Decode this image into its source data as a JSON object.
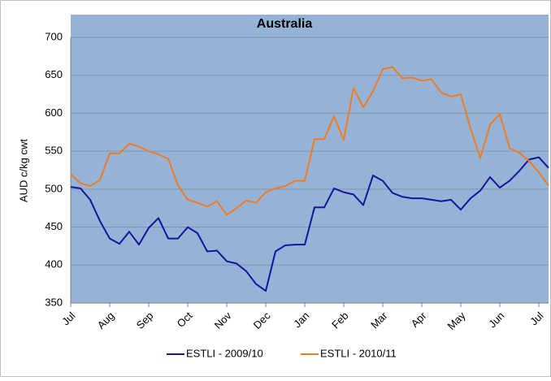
{
  "chart_data": {
    "type": "line",
    "title": "Australia",
    "y_label": "AUD c/kg cwt",
    "categories": [
      "Jul",
      null,
      null,
      null,
      "Aug",
      null,
      null,
      null,
      "Sep",
      null,
      null,
      null,
      "Oct",
      null,
      null,
      null,
      "Nov",
      null,
      null,
      null,
      "Dec",
      null,
      null,
      null,
      "Jan",
      null,
      null,
      null,
      "Feb",
      null,
      null,
      null,
      "Mar",
      null,
      null,
      null,
      "Apr",
      null,
      null,
      null,
      "May",
      null,
      null,
      null,
      "Jun",
      null,
      null,
      null,
      "Jul",
      null
    ],
    "series": [
      {
        "name": "ESTLI - 2009/10",
        "color": "#14149c",
        "values": [
          503,
          501,
          486,
          458,
          435,
          428,
          444,
          427,
          449,
          462,
          435,
          435,
          450,
          442,
          418,
          419,
          405,
          402,
          392,
          375,
          366,
          418,
          426,
          427,
          427,
          476,
          476,
          501,
          496,
          493,
          479,
          518,
          511,
          495,
          490,
          488,
          488,
          486,
          484,
          486,
          473,
          488,
          498,
          516,
          502,
          511,
          524,
          539,
          542,
          528
        ]
      },
      {
        "name": "ESTLI - 2010/11",
        "color": "#f27b21",
        "values": [
          520,
          508,
          504,
          512,
          547,
          547,
          560,
          556,
          550,
          546,
          540,
          505,
          486,
          482,
          477,
          484,
          466,
          475,
          485,
          482,
          496,
          501,
          504,
          511,
          511,
          566,
          566,
          596,
          565,
          633,
          608,
          629,
          658,
          661,
          646,
          647,
          643,
          645,
          627,
          622,
          625,
          580,
          541,
          585,
          599,
          554,
          548,
          537,
          522,
          505
        ]
      }
    ],
    "ylim": [
      350,
      700
    ],
    "yticks": [
      350,
      400,
      450,
      500,
      550,
      600,
      650,
      700
    ],
    "grid": true,
    "legend": "bottom"
  }
}
